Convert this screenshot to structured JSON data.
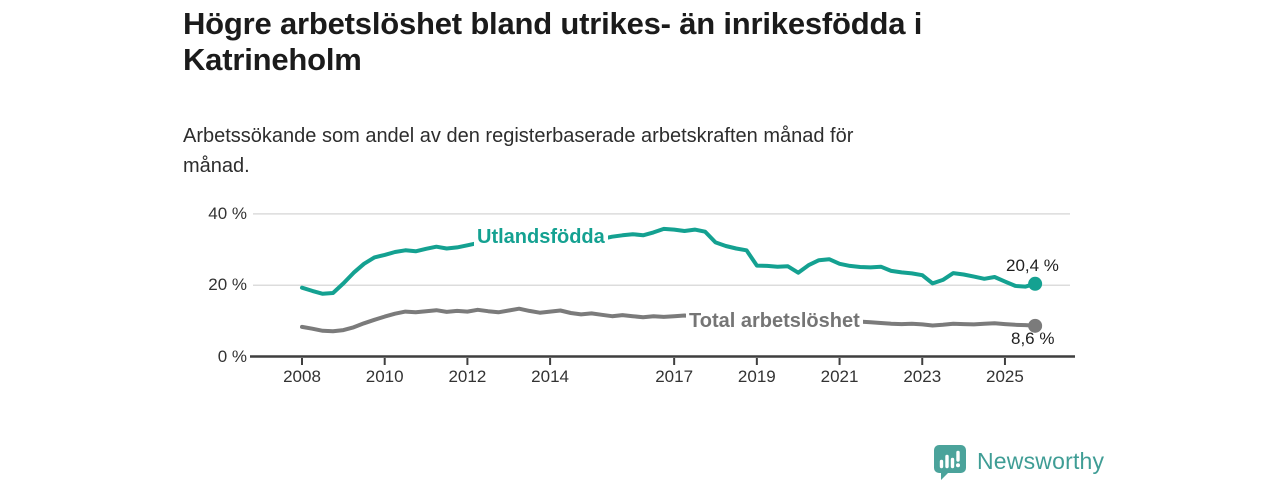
{
  "header": {
    "title_line1": "Högre arbetslöshet bland utrikes- än inrikesfödda i",
    "title_line2": "Katrineholm",
    "subtitle_line1": "Arbetssökande som andel av den registerbaserade arbetskraften månad för",
    "subtitle_line2": "månad."
  },
  "chart_data": {
    "type": "line",
    "unit": "%",
    "ylim": [
      0,
      40
    ],
    "grid": "horizontal",
    "legend_position": "inline-on-lines",
    "axis_color": "#3f3f3f",
    "grid_color": "#dcdcdc",
    "tick_text_color": "#333333",
    "yticks": [
      {
        "v": 0,
        "label": "0 %"
      },
      {
        "v": 20,
        "label": "20 %"
      },
      {
        "v": 40,
        "label": "40 %"
      }
    ],
    "xticks": [
      {
        "v": 2008,
        "label": "2008"
      },
      {
        "v": 2010,
        "label": "2010"
      },
      {
        "v": 2012,
        "label": "2012"
      },
      {
        "v": 2014,
        "label": "2014"
      },
      {
        "v": 2017,
        "label": "2017"
      },
      {
        "v": 2019,
        "label": "2019"
      },
      {
        "v": 2021,
        "label": "2021"
      },
      {
        "v": 2023,
        "label": "2023"
      },
      {
        "v": 2025,
        "label": "2025"
      }
    ],
    "x": [
      2008,
      2008.25,
      2008.5,
      2008.75,
      2009,
      2009.25,
      2009.5,
      2009.75,
      2010,
      2010.25,
      2010.5,
      2010.75,
      2011,
      2011.25,
      2011.5,
      2011.75,
      2012,
      2012.25,
      2012.5,
      2012.75,
      2013,
      2013.25,
      2013.5,
      2013.75,
      2014,
      2014.25,
      2014.5,
      2014.75,
      2015,
      2015.25,
      2015.5,
      2015.75,
      2016,
      2016.25,
      2016.5,
      2016.75,
      2017,
      2017.25,
      2017.5,
      2017.75,
      2018,
      2018.25,
      2018.5,
      2018.75,
      2019,
      2019.25,
      2019.5,
      2019.75,
      2020,
      2020.25,
      2020.5,
      2020.75,
      2021,
      2021.25,
      2021.5,
      2021.75,
      2022,
      2022.25,
      2022.5,
      2022.75,
      2023,
      2023.25,
      2023.5,
      2023.75,
      2024,
      2024.25,
      2024.5,
      2024.75,
      2025,
      2025.25,
      2025.5,
      2025.73
    ],
    "series": [
      {
        "name": "Utlandsfödda",
        "color": "#14a191",
        "end_label": "20,4 %",
        "end_value": 20.4,
        "values": [
          19.3,
          18.4,
          17.6,
          17.8,
          20.5,
          23.5,
          26.0,
          27.8,
          28.5,
          29.3,
          29.8,
          29.5,
          30.2,
          30.8,
          30.3,
          30.6,
          31.2,
          31.8,
          31.4,
          31.9,
          32.2,
          31.8,
          32.4,
          32.1,
          32.4,
          32.8,
          32.4,
          32.9,
          33.2,
          33.0,
          33.6,
          34.0,
          34.3,
          34.0,
          34.8,
          35.8,
          35.6,
          35.2,
          35.6,
          35.0,
          32.0,
          31.0,
          30.3,
          29.8,
          25.5,
          25.4,
          25.2,
          25.3,
          23.5,
          25.6,
          27.0,
          27.3,
          26.0,
          25.4,
          25.1,
          25.0,
          25.2,
          24.0,
          23.6,
          23.3,
          22.8,
          20.5,
          21.5,
          23.4,
          23.0,
          22.4,
          21.8,
          22.3,
          21.0,
          19.8,
          19.6,
          20.4
        ]
      },
      {
        "name": "Total arbetslöshet",
        "color": "#7b7b7b",
        "label_color": "#757575",
        "end_label": "8,6 %",
        "end_value": 8.6,
        "values": [
          8.3,
          7.8,
          7.2,
          7.1,
          7.4,
          8.2,
          9.3,
          10.3,
          11.2,
          12.0,
          12.6,
          12.4,
          12.7,
          13.0,
          12.5,
          12.8,
          12.6,
          13.1,
          12.7,
          12.4,
          12.9,
          13.4,
          12.8,
          12.3,
          12.6,
          12.9,
          12.2,
          11.8,
          12.1,
          11.7,
          11.3,
          11.6,
          11.3,
          11.0,
          11.3,
          11.1,
          11.3,
          11.5,
          11.2,
          11.3,
          11.0,
          11.2,
          10.8,
          10.6,
          10.4,
          10.2,
          10.0,
          10.0,
          10.2,
          10.8,
          10.9,
          10.6,
          10.4,
          10.1,
          9.8,
          9.6,
          9.4,
          9.2,
          9.1,
          9.2,
          9.0,
          8.7,
          8.9,
          9.2,
          9.1,
          9.0,
          9.2,
          9.3,
          9.1,
          8.9,
          8.8,
          8.6
        ]
      }
    ]
  },
  "footer": {
    "brand": "Newsworthy",
    "logo_icon": "bar-chart-speech-bubble",
    "logo_color": "#4ba39b",
    "text_color": "#3f9d95"
  }
}
